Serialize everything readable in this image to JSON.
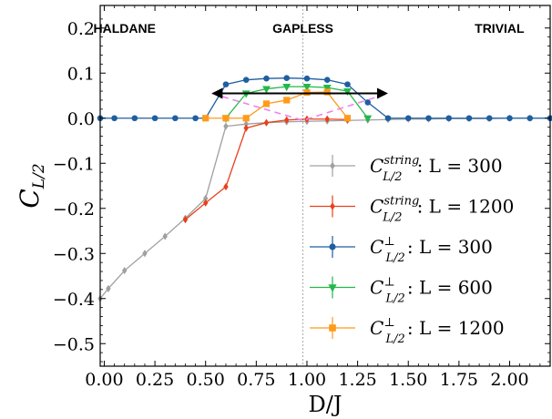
{
  "chart_data": {
    "type": "line",
    "xlabel": "D/J",
    "ylabel": "C",
    "ylabel_sub": "L/2",
    "xlim": [
      -0.02,
      2.2
    ],
    "ylim": [
      -0.55,
      0.25
    ],
    "xticks": [
      0.0,
      0.25,
      0.5,
      0.75,
      1.0,
      1.25,
      1.5,
      1.75,
      2.0
    ],
    "xtick_labels": [
      "0.00",
      "0.25",
      "0.50",
      "0.75",
      "1.00",
      "1.25",
      "1.50",
      "1.75",
      "2.00"
    ],
    "yticks": [
      0.2,
      0.1,
      0.0,
      -0.1,
      -0.2,
      -0.3,
      -0.4,
      -0.5
    ],
    "ytick_labels": [
      "0.2",
      "0.1",
      "0.0",
      "−0.1",
      "−0.2",
      "−0.3",
      "−0.4",
      "−0.5"
    ],
    "critical_line_x": 0.98,
    "region_labels": [
      {
        "text": "HALDANE",
        "x": 0.1,
        "y": 0.2
      },
      {
        "text": "GAPLESS",
        "x": 0.98,
        "y": 0.2
      },
      {
        "text": "TRIVIAL",
        "x": 1.95,
        "y": 0.2
      }
    ],
    "gapless_arrow": {
      "x_start": 0.53,
      "x_end": 1.4,
      "y": 0.055
    },
    "dashed_guides": [
      {
        "x": [
          0.53,
          0.98,
          1.4
        ],
        "y": [
          0.055,
          -0.005,
          0.055
        ],
        "color": "#ee82ee"
      }
    ],
    "series": [
      {
        "label_main": "C",
        "label_sup": "string",
        "label_sub": "L/2",
        "label_L": ": L = 300",
        "color": "#a0a0a0",
        "marker": "diamond",
        "x": [
          -0.02,
          0.02,
          0.1,
          0.2,
          0.3,
          0.4,
          0.5,
          0.6,
          0.7,
          0.8,
          0.9,
          1.0,
          1.1,
          1.2,
          1.3,
          1.4,
          1.5,
          1.6,
          1.7,
          1.8,
          1.9,
          2.0,
          2.1,
          2.2
        ],
        "y": [
          -0.4,
          -0.378,
          -0.338,
          -0.3,
          -0.262,
          -0.222,
          -0.178,
          -0.018,
          -0.013,
          -0.01,
          -0.008,
          -0.007,
          -0.006,
          -0.005,
          -0.004,
          -0.003,
          -0.002,
          -0.002,
          -0.001,
          -0.001,
          -0.001,
          0.0,
          0.0,
          0.0
        ]
      },
      {
        "label_main": "C",
        "label_sup": "string",
        "label_sub": "L/2",
        "label_L": ": L = 1200",
        "color": "#e8401c",
        "marker": "diamond",
        "x": [
          0.4,
          0.5,
          0.6,
          0.7,
          0.8,
          0.9,
          1.0,
          1.1,
          1.2
        ],
        "y": [
          -0.225,
          -0.188,
          -0.152,
          -0.022,
          -0.01,
          -0.004,
          -0.002,
          -0.002,
          -0.003
        ]
      },
      {
        "label_main": "C",
        "label_sup": "⊥",
        "label_sub": "L/2",
        "label_L": ": L = 300",
        "color": "#1f5fa0",
        "marker": "circle",
        "x": [
          -0.02,
          0.05,
          0.15,
          0.25,
          0.35,
          0.45,
          0.5,
          0.6,
          0.7,
          0.8,
          0.9,
          1.0,
          1.1,
          1.2,
          1.3,
          1.4,
          1.5,
          1.6,
          1.7,
          1.8,
          1.9,
          2.0,
          2.1,
          2.2
        ],
        "y": [
          0.0,
          0.0,
          0.0,
          0.0,
          0.0,
          0.0,
          0.0,
          0.075,
          0.085,
          0.088,
          0.089,
          0.088,
          0.085,
          0.075,
          0.035,
          0.0,
          0.0,
          0.0,
          0.0,
          0.0,
          0.0,
          0.0,
          0.0,
          0.0
        ]
      },
      {
        "label_main": "C",
        "label_sup": "⊥",
        "label_sub": "L/2",
        "label_L": ": L = 600",
        "color": "#22b84a",
        "marker": "triangle-down",
        "x": [
          0.6,
          0.7,
          0.8,
          0.9,
          1.0,
          1.1,
          1.2,
          1.3
        ],
        "y": [
          0.0,
          0.055,
          0.065,
          0.07,
          0.07,
          0.068,
          0.06,
          0.0
        ]
      },
      {
        "label_main": "C",
        "label_sup": "⊥",
        "label_sub": "L/2",
        "label_L": ": L = 1200",
        "color": "#ff9a1a",
        "marker": "square",
        "x": [
          0.5,
          0.6,
          0.7,
          0.8,
          0.9,
          1.0,
          1.1,
          1.2
        ],
        "y": [
          0.0,
          0.0,
          0.0,
          0.032,
          0.04,
          0.057,
          0.058,
          0.0
        ]
      }
    ]
  }
}
